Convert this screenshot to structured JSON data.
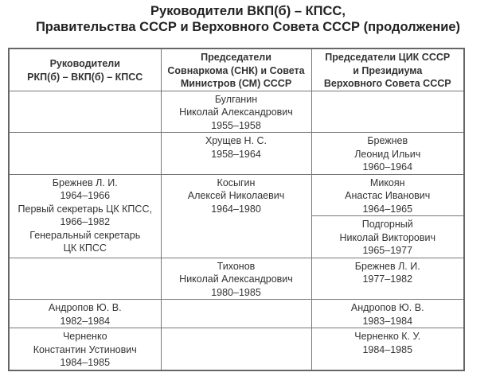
{
  "title": [
    "Руководители ВКП(б) – КПСС,",
    "Правительства СССР и Верховного Совета СССР (продолжение)"
  ],
  "table": {
    "headers": [
      [
        "Руководители",
        "РКП(б) – ВКП(б) – КПСС"
      ],
      [
        "Председатели",
        "Совнаркома (СНК) и Совета",
        "Министров (СМ) СССР"
      ],
      [
        "Председатели ЦИК СССР",
        "и Президиума",
        "Верховного Совета СССР"
      ]
    ],
    "cells": {
      "r1c2": [
        "Булганин",
        "Николай Александрович",
        "1955–1958"
      ],
      "r2c2": [
        "Хрущев Н. С.",
        "1958–1964"
      ],
      "r2c3": [
        "Брежнев",
        "Леонид Ильич",
        "1960–1964"
      ],
      "r3c1": [
        "Брежнев Л. И.",
        "1964–1966",
        "Первый секретарь ЦК КПСС,",
        "1966–1982",
        "Генеральный секретарь",
        "ЦК КПСС"
      ],
      "r3c2": [
        "Косыгин",
        "Алексей Николаевич",
        "1964–1980"
      ],
      "r3c3a": [
        "Микоян",
        "Анастас Иванович",
        "1964–1965"
      ],
      "r3c3b": [
        "Подгорный",
        "Николай Викторович",
        "1965–1977"
      ],
      "r4c2": [
        "Тихонов",
        "Николай Александрович",
        "1980–1985"
      ],
      "r4c3": [
        "Брежнев Л. И.",
        "1977–1982"
      ],
      "r5c1": [
        "Андропов Ю. В.",
        "1982–1984"
      ],
      "r5c3": [
        "Андропов Ю. В.",
        "1983–1984"
      ],
      "r6c1": [
        "Черненко",
        "Константин Устинович",
        "1984–1985"
      ],
      "r6c3": [
        "Черненко К. У.",
        "1984–1985"
      ]
    }
  }
}
